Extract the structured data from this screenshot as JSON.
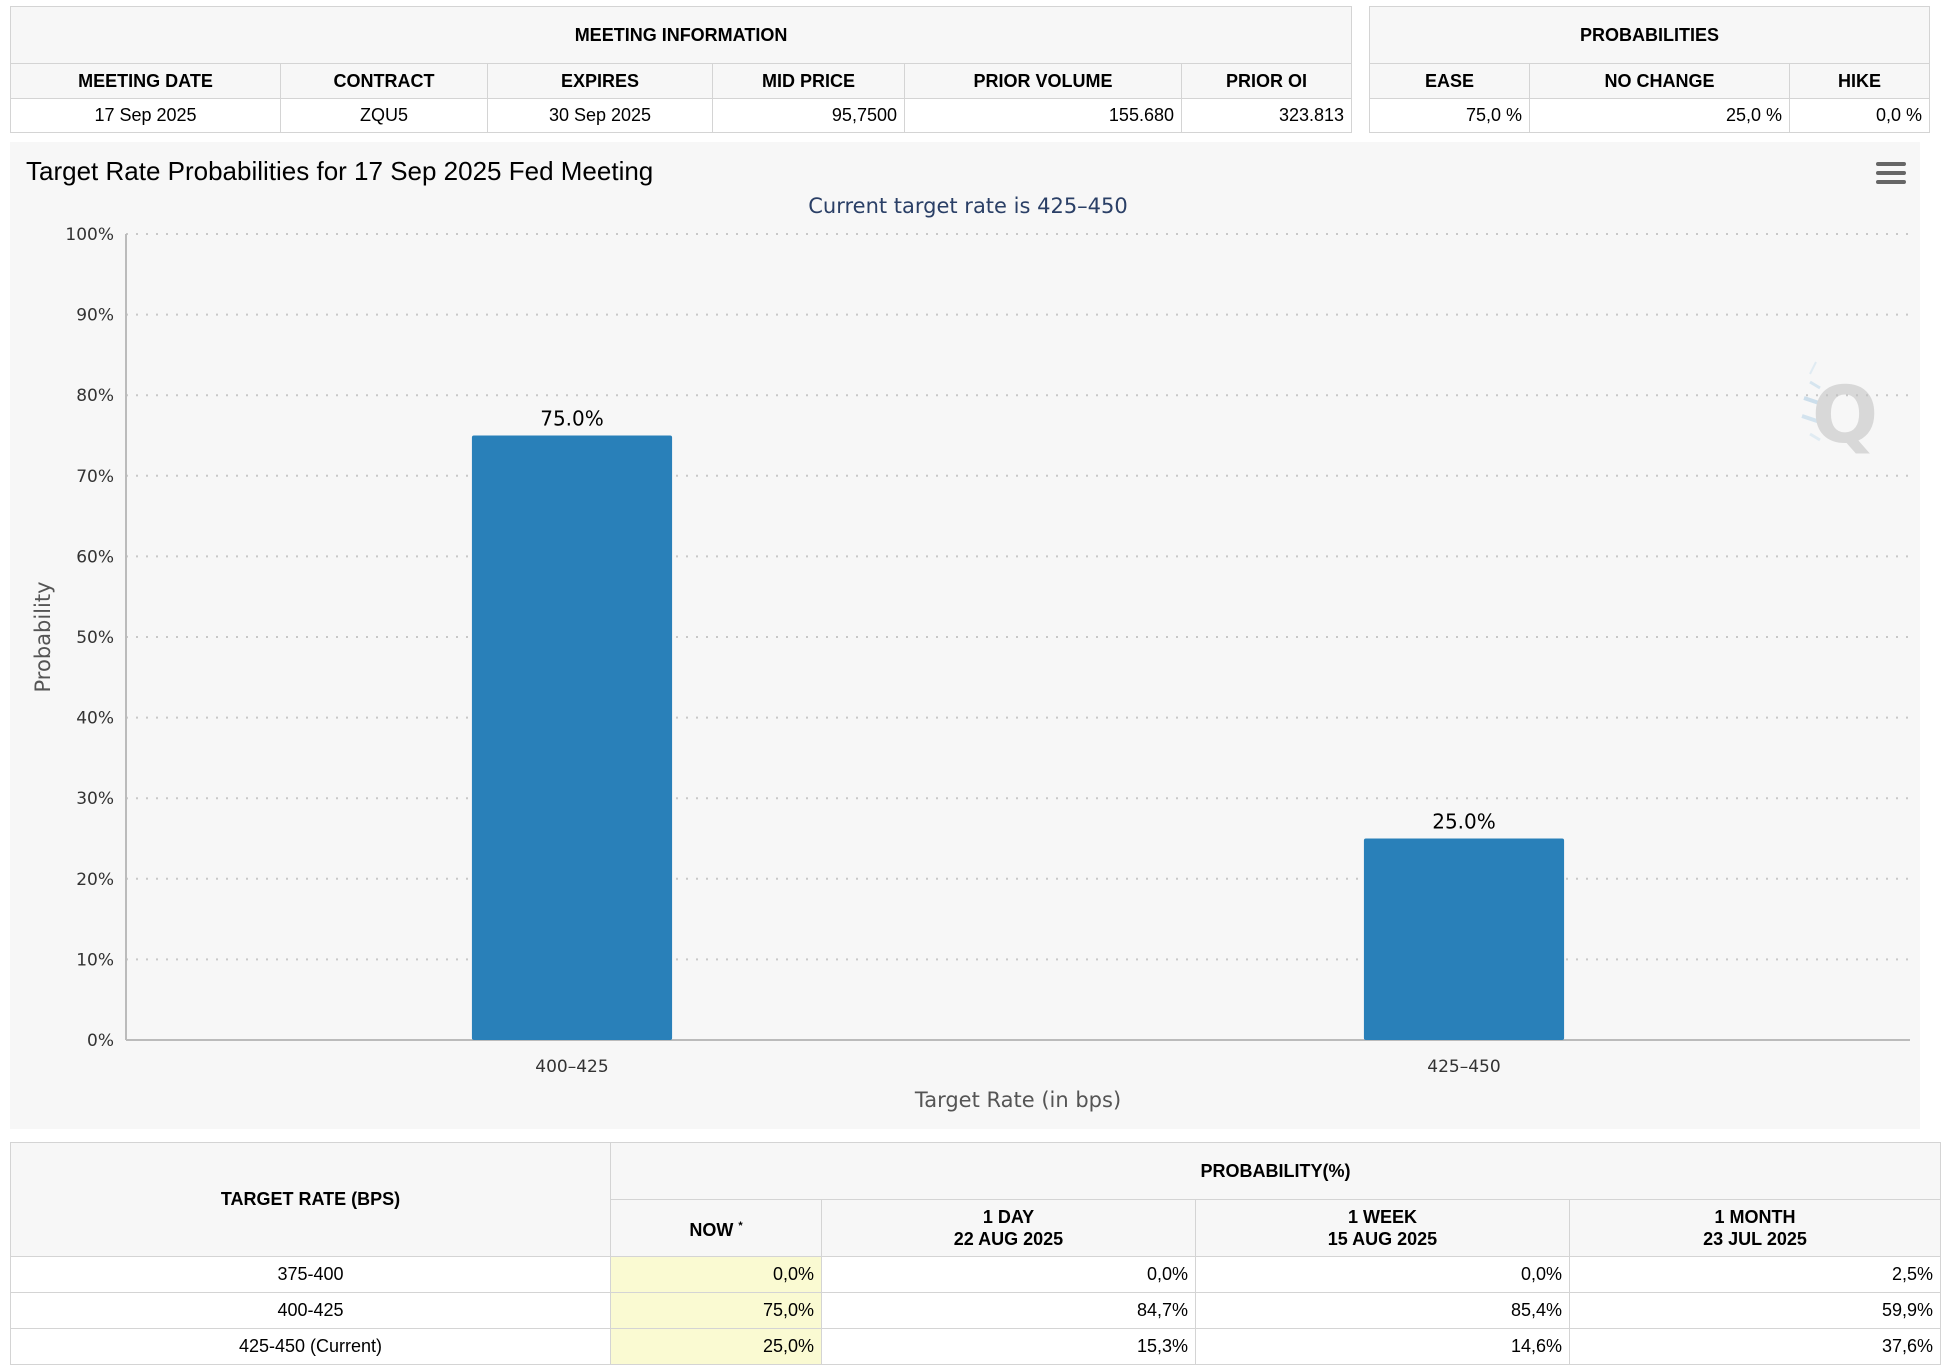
{
  "meeting_info": {
    "title": "MEETING INFORMATION",
    "columns": [
      "MEETING DATE",
      "CONTRACT",
      "EXPIRES",
      "MID PRICE",
      "PRIOR VOLUME",
      "PRIOR OI"
    ],
    "row": [
      "17 Sep 2025",
      "ZQU5",
      "30 Sep 2025",
      "95,7500",
      "155.680",
      "323.813"
    ]
  },
  "probabilities": {
    "title": "PROBABILITIES",
    "columns": [
      "EASE",
      "NO CHANGE",
      "HIKE"
    ],
    "row": [
      "75,0 %",
      "25,0 %",
      "0,0 %"
    ]
  },
  "chart": {
    "menu_icon": "hamburger-menu-icon",
    "watermark_icon": "q-logo-icon",
    "bar_color": "#2980b9"
  },
  "chart_data": {
    "type": "bar",
    "title": "Target Rate Probabilities for 17 Sep 2025 Fed Meeting",
    "subtitle": "Current target rate is 425–450",
    "categories": [
      "400–425",
      "425–450"
    ],
    "values": [
      75.0,
      25.0
    ],
    "data_labels": [
      "75.0%",
      "25.0%"
    ],
    "xlabel": "Target Rate (in bps)",
    "ylabel": "Probability",
    "ylim": [
      0,
      100
    ],
    "yticks": [
      "0%",
      "10%",
      "20%",
      "30%",
      "40%",
      "50%",
      "60%",
      "70%",
      "80%",
      "90%",
      "100%"
    ],
    "grid": true,
    "legend": "none"
  },
  "rate_table": {
    "target_header": "TARGET RATE (BPS)",
    "prob_header": "PROBABILITY(%)",
    "now_label": "NOW",
    "now_marker": "*",
    "col_labels": [
      "1 DAY",
      "1 WEEK",
      "1 MONTH"
    ],
    "col_dates": [
      "22 AUG 2025",
      "15 AUG 2025",
      "23 JUL 2025"
    ],
    "rows": [
      {
        "rate": "375-400",
        "now": "0,0%",
        "day": "0,0%",
        "week": "0,0%",
        "month": "2,5%"
      },
      {
        "rate": "400-425",
        "now": "75,0%",
        "day": "84,7%",
        "week": "85,4%",
        "month": "59,9%"
      },
      {
        "rate": "425-450 (Current)",
        "now": "25,0%",
        "day": "15,3%",
        "week": "14,6%",
        "month": "37,6%"
      }
    ]
  }
}
